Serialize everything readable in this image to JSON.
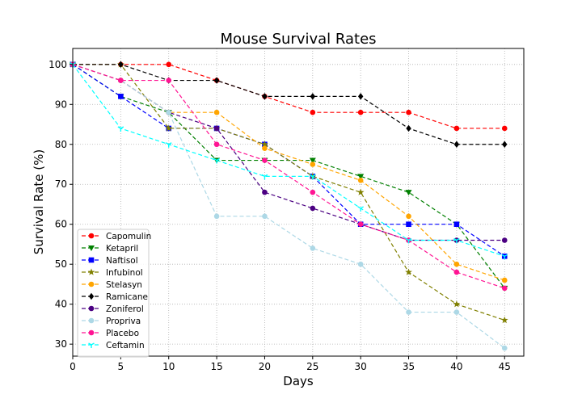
{
  "chart_data": {
    "type": "line",
    "title": "Mouse Survival Rates",
    "xlabel": "Days",
    "ylabel": "Survival Rate (%)",
    "xlim": [
      0,
      47
    ],
    "ylim": [
      27,
      104
    ],
    "xticks": [
      0,
      5,
      10,
      15,
      20,
      25,
      30,
      35,
      40,
      45
    ],
    "yticks": [
      30,
      40,
      50,
      60,
      70,
      80,
      90,
      100
    ],
    "grid": true,
    "grid_style": "dotted",
    "legend_position": "lower-left",
    "x": [
      0,
      5,
      10,
      15,
      20,
      25,
      30,
      35,
      40,
      45
    ],
    "series": [
      {
        "name": "Capomulin",
        "color": "#ff0000",
        "marker": "circle",
        "values": [
          100,
          100,
          100,
          96,
          92,
          88,
          88,
          88,
          84,
          84
        ]
      },
      {
        "name": "Ketapril",
        "color": "#008000",
        "marker": "triangle-down",
        "values": [
          100,
          92,
          88,
          76,
          76,
          76,
          72,
          68,
          60,
          44
        ]
      },
      {
        "name": "Naftisol",
        "color": "#0000ff",
        "marker": "square",
        "values": [
          100,
          92,
          84,
          84,
          80,
          72,
          60,
          60,
          60,
          52
        ]
      },
      {
        "name": "Infubinol",
        "color": "#808000",
        "marker": "star",
        "values": [
          100,
          100,
          84,
          84,
          80,
          72,
          68,
          48,
          40,
          36
        ]
      },
      {
        "name": "Stelasyn",
        "color": "#ffa500",
        "marker": "circle",
        "values": [
          100,
          96,
          88,
          88,
          79,
          75,
          71,
          62,
          50,
          46
        ]
      },
      {
        "name": "Ramicane",
        "color": "#000000",
        "marker": "diamond",
        "values": [
          100,
          100,
          96,
          96,
          92,
          92,
          92,
          84,
          80,
          80
        ]
      },
      {
        "name": "Zoniferol",
        "color": "#4b0082",
        "marker": "circle",
        "values": [
          100,
          96,
          88,
          84,
          68,
          64,
          60,
          56,
          56,
          56
        ]
      },
      {
        "name": "Propriva",
        "color": "#add8e6",
        "marker": "circle",
        "values": [
          100,
          96,
          88,
          62,
          62,
          54,
          50,
          38,
          38,
          29
        ]
      },
      {
        "name": "Placebo",
        "color": "#ff1493",
        "marker": "circle",
        "values": [
          100,
          96,
          96,
          80,
          76,
          68,
          60,
          56,
          48,
          44
        ]
      },
      {
        "name": "Ceftamin",
        "color": "#00ffff",
        "marker": "tri",
        "values": [
          100,
          84,
          80,
          76,
          72,
          72,
          64,
          56,
          56,
          52
        ]
      }
    ]
  }
}
